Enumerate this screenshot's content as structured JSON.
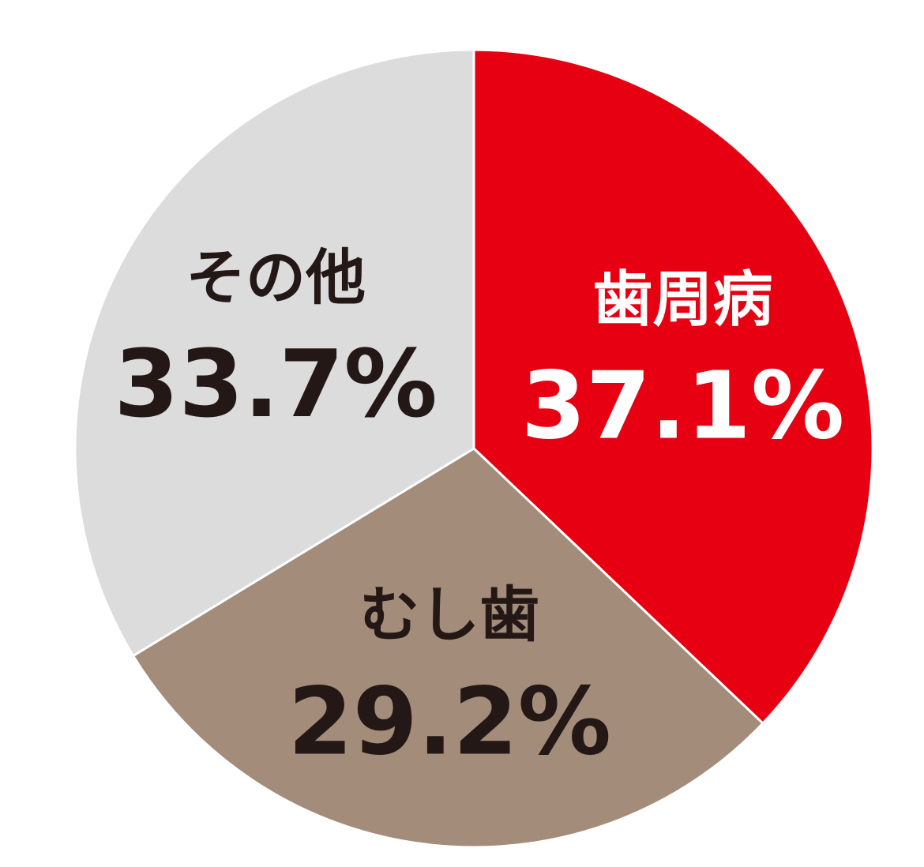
{
  "chart_data": {
    "type": "pie",
    "categories": [
      "歯周病",
      "むし歯",
      "その他"
    ],
    "values": [
      37.1,
      29.2,
      33.7
    ],
    "value_labels": [
      "37.1%",
      "29.2%",
      "33.7%"
    ],
    "colors": [
      "#e60012",
      "#a38c7a",
      "#dcdcdd"
    ],
    "label_colors": [
      "#ffffff",
      "#231815",
      "#231815"
    ]
  }
}
